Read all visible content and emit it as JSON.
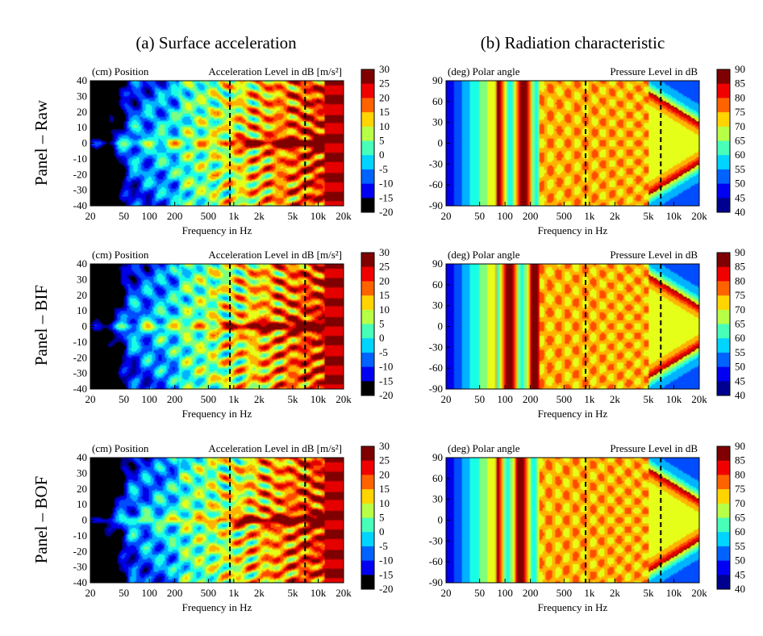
{
  "column_titles": [
    "(a) Surface acceleration",
    "(b) Radiation characteristic"
  ],
  "row_titles": [
    "Panel – Raw",
    "Panel – BIF",
    "Panel – BOF"
  ],
  "colors": {
    "jet": [
      "#00008f",
      "#0000ff",
      "#007fff",
      "#00ffff",
      "#7fff7f",
      "#ffff00",
      "#ff7f00",
      "#ff0000",
      "#7f0000"
    ],
    "low_cutoff": "#000000",
    "dashed_line": "#000000"
  },
  "chart_data": [
    {
      "type": "heatmap",
      "title": "(cm) Position",
      "value_label": "Acceleration Level in dB [m/s²]",
      "xlabel": "Frequency in Hz",
      "ylabel": "(cm) Position",
      "x_scale": "log",
      "xlim": [
        20,
        20000
      ],
      "x_ticks": [
        "20",
        "50",
        "100",
        "200",
        "500",
        "1k",
        "2k",
        "5k",
        "10k",
        "20k"
      ],
      "ylim": [
        -40,
        40
      ],
      "y_ticks": [
        "40",
        "30",
        "20",
        "10",
        "0",
        "-10",
        "-20",
        "-30",
        "-40"
      ],
      "colorbar_ticks": [
        "30",
        "25",
        "20",
        "15",
        "10",
        "5",
        "0",
        "-5",
        "-10",
        "-15",
        "-20"
      ],
      "colorbar_range": [
        -20,
        30
      ],
      "dashed_lines_hz": [
        900,
        7000
      ]
    },
    {
      "type": "heatmap",
      "title": "(deg) Polar angle",
      "value_label": "Pressure Level in dB",
      "xlabel": "Frequency in Hz",
      "ylabel": "(deg) Polar angle",
      "x_scale": "log",
      "xlim": [
        20,
        20000
      ],
      "x_ticks": [
        "20",
        "50",
        "100",
        "200",
        "500",
        "1k",
        "2k",
        "5k",
        "10k",
        "20k"
      ],
      "ylim": [
        -90,
        90
      ],
      "y_ticks": [
        "90",
        "60",
        "30",
        "0",
        "-30",
        "-60",
        "-90"
      ],
      "colorbar_ticks": [
        "90",
        "85",
        "80",
        "75",
        "70",
        "65",
        "60",
        "55",
        "50",
        "45",
        "40"
      ],
      "colorbar_range": [
        40,
        90
      ],
      "dashed_lines_hz": [
        900,
        7000
      ]
    },
    {
      "type": "heatmap",
      "title": "(cm) Position",
      "value_label": "Acceleration Level in dB [m/s²]",
      "xlabel": "Frequency in Hz",
      "ylabel": "(cm) Position",
      "x_scale": "log",
      "xlim": [
        20,
        20000
      ],
      "x_ticks": [
        "20",
        "50",
        "100",
        "200",
        "500",
        "1k",
        "2k",
        "5k",
        "10k",
        "20k"
      ],
      "ylim": [
        -40,
        40
      ],
      "y_ticks": [
        "40",
        "30",
        "20",
        "10",
        "0",
        "-10",
        "-20",
        "-30",
        "-40"
      ],
      "colorbar_ticks": [
        "30",
        "25",
        "20",
        "15",
        "10",
        "5",
        "0",
        "-5",
        "-10",
        "-15",
        "-20"
      ],
      "colorbar_range": [
        -20,
        30
      ],
      "dashed_lines_hz": [
        900,
        7000
      ]
    },
    {
      "type": "heatmap",
      "title": "(deg) Polar angle",
      "value_label": "Pressure Level in dB",
      "xlabel": "Frequency in Hz",
      "ylabel": "(deg) Polar angle",
      "x_scale": "log",
      "xlim": [
        20,
        20000
      ],
      "x_ticks": [
        "20",
        "50",
        "100",
        "200",
        "500",
        "1k",
        "2k",
        "5k",
        "10k",
        "20k"
      ],
      "ylim": [
        -90,
        90
      ],
      "y_ticks": [
        "90",
        "60",
        "30",
        "0",
        "-30",
        "-60",
        "-90"
      ],
      "colorbar_ticks": [
        "90",
        "85",
        "80",
        "75",
        "70",
        "65",
        "60",
        "55",
        "50",
        "45",
        "40"
      ],
      "colorbar_range": [
        40,
        90
      ],
      "dashed_lines_hz": [
        900,
        7000
      ]
    },
    {
      "type": "heatmap",
      "title": "(cm) Position",
      "value_label": "Acceleration Level in dB [m/s²]",
      "xlabel": "Frequency in Hz",
      "ylabel": "(cm) Position",
      "x_scale": "log",
      "xlim": [
        20,
        20000
      ],
      "x_ticks": [
        "20",
        "50",
        "100",
        "200",
        "500",
        "1k",
        "2k",
        "5k",
        "10k",
        "20k"
      ],
      "ylim": [
        -40,
        40
      ],
      "y_ticks": [
        "40",
        "30",
        "20",
        "10",
        "0",
        "-10",
        "-20",
        "-30",
        "-40"
      ],
      "colorbar_ticks": [
        "30",
        "25",
        "20",
        "15",
        "10",
        "5",
        "0",
        "-5",
        "-10",
        "-15",
        "-20"
      ],
      "colorbar_range": [
        -20,
        30
      ],
      "dashed_lines_hz": [
        900,
        7000
      ]
    },
    {
      "type": "heatmap",
      "title": "(deg) Polar angle",
      "value_label": "Pressure Level in dB",
      "xlabel": "Frequency in Hz",
      "ylabel": "(deg) Polar angle",
      "x_scale": "log",
      "xlim": [
        20,
        20000
      ],
      "x_ticks": [
        "20",
        "50",
        "100",
        "200",
        "500",
        "1k",
        "2k",
        "5k",
        "10k",
        "20k"
      ],
      "ylim": [
        -90,
        90
      ],
      "y_ticks": [
        "90",
        "60",
        "30",
        "0",
        "-30",
        "-60",
        "-90"
      ],
      "colorbar_ticks": [
        "90",
        "85",
        "80",
        "75",
        "70",
        "65",
        "60",
        "55",
        "50",
        "45",
        "40"
      ],
      "colorbar_range": [
        40,
        90
      ],
      "dashed_lines_hz": [
        900,
        7000
      ]
    }
  ]
}
